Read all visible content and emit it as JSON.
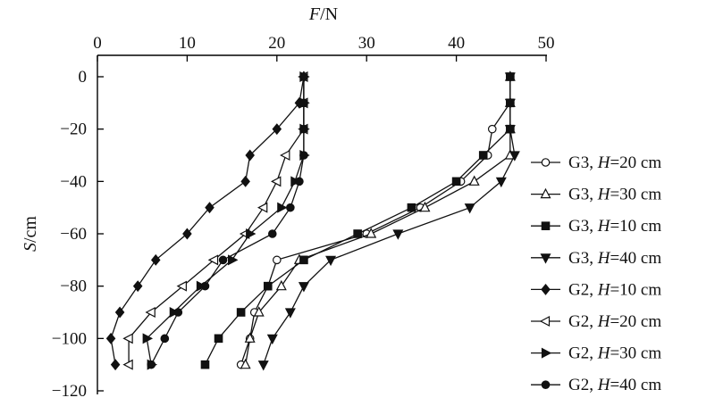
{
  "chart_data": {
    "type": "line",
    "xlabel": {
      "var": "F",
      "unit": "/N"
    },
    "ylabel": {
      "var": "S",
      "unit": "/cm"
    },
    "xlim": [
      0,
      50
    ],
    "ylim": [
      -120,
      0
    ],
    "xticks": [
      0,
      10,
      20,
      30,
      40,
      50
    ],
    "yticks": [
      0,
      -20,
      -40,
      -60,
      -80,
      -100,
      -120
    ],
    "x_axis_position": "top",
    "grid": false,
    "legend_position": "right",
    "series": [
      {
        "name": "G3, H=20 cm",
        "legend": {
          "prefix": "G3, ",
          "var": "H",
          "suffix": "=20 cm"
        },
        "marker": "circle-open",
        "points": [
          [
            46,
            0
          ],
          [
            46,
            -10
          ],
          [
            44,
            -20
          ],
          [
            43.5,
            -30
          ],
          [
            40.5,
            -40
          ],
          [
            36,
            -50
          ],
          [
            30,
            -60
          ],
          [
            20,
            -70
          ],
          [
            19,
            -80
          ],
          [
            17.5,
            -90
          ],
          [
            17,
            -100
          ],
          [
            16,
            -110
          ]
        ]
      },
      {
        "name": "G3, H=30 cm",
        "legend": {
          "prefix": "G3, ",
          "var": "H",
          "suffix": "=30 cm"
        },
        "marker": "triangle-up-open",
        "points": [
          [
            46,
            0
          ],
          [
            46,
            -10
          ],
          [
            46,
            -20
          ],
          [
            46,
            -30
          ],
          [
            42,
            -40
          ],
          [
            36.5,
            -50
          ],
          [
            30.5,
            -60
          ],
          [
            22.5,
            -70
          ],
          [
            20.5,
            -80
          ],
          [
            18,
            -90
          ],
          [
            17,
            -100
          ],
          [
            16.5,
            -110
          ]
        ]
      },
      {
        "name": "G3, H=10 cm",
        "legend": {
          "prefix": "G3, ",
          "var": "H",
          "suffix": "=10 cm"
        },
        "marker": "square",
        "points": [
          [
            46,
            0
          ],
          [
            46,
            -10
          ],
          [
            46,
            -20
          ],
          [
            43,
            -30
          ],
          [
            40,
            -40
          ],
          [
            35,
            -50
          ],
          [
            29,
            -60
          ],
          [
            23,
            -70
          ],
          [
            19,
            -80
          ],
          [
            16,
            -90
          ],
          [
            13.5,
            -100
          ],
          [
            12,
            -110
          ]
        ]
      },
      {
        "name": "G3, H=40 cm",
        "legend": {
          "prefix": "G3, ",
          "var": "H",
          "suffix": "=40 cm"
        },
        "marker": "triangle-down",
        "points": [
          [
            46,
            0
          ],
          [
            46,
            -10
          ],
          [
            46,
            -20
          ],
          [
            46.5,
            -30
          ],
          [
            45,
            -40
          ],
          [
            41.5,
            -50
          ],
          [
            33.5,
            -60
          ],
          [
            26,
            -70
          ],
          [
            23,
            -80
          ],
          [
            21.5,
            -90
          ],
          [
            19.5,
            -100
          ],
          [
            18.5,
            -110
          ]
        ]
      },
      {
        "name": "G2, H=10 cm",
        "legend": {
          "prefix": "G2, ",
          "var": "H",
          "suffix": "=10 cm"
        },
        "marker": "diamond",
        "points": [
          [
            23,
            0
          ],
          [
            22.5,
            -10
          ],
          [
            20,
            -20
          ],
          [
            17,
            -30
          ],
          [
            16.5,
            -40
          ],
          [
            12.5,
            -50
          ],
          [
            10,
            -60
          ],
          [
            6.5,
            -70
          ],
          [
            4.5,
            -80
          ],
          [
            2.5,
            -90
          ],
          [
            1.5,
            -100
          ],
          [
            2,
            -110
          ]
        ]
      },
      {
        "name": "G2, H=20 cm",
        "legend": {
          "prefix": "G2, ",
          "var": "H",
          "suffix": "=20 cm"
        },
        "marker": "triangle-left-open",
        "points": [
          [
            23,
            0
          ],
          [
            23,
            -10
          ],
          [
            23,
            -20
          ],
          [
            21,
            -30
          ],
          [
            20,
            -40
          ],
          [
            18.5,
            -50
          ],
          [
            16.5,
            -60
          ],
          [
            13,
            -70
          ],
          [
            9.5,
            -80
          ],
          [
            6,
            -90
          ],
          [
            3.5,
            -100
          ],
          [
            3.5,
            -110
          ]
        ]
      },
      {
        "name": "G2, H=30 cm",
        "legend": {
          "prefix": "G2, ",
          "var": "H",
          "suffix": "=30 cm"
        },
        "marker": "triangle-right",
        "points": [
          [
            23,
            0
          ],
          [
            23,
            -10
          ],
          [
            23,
            -20
          ],
          [
            23,
            -30
          ],
          [
            22,
            -40
          ],
          [
            20.5,
            -50
          ],
          [
            17,
            -60
          ],
          [
            15,
            -70
          ],
          [
            11.5,
            -80
          ],
          [
            8.5,
            -90
          ],
          [
            5.5,
            -100
          ],
          [
            6,
            -110
          ]
        ]
      },
      {
        "name": "G2, H=40 cm",
        "legend": {
          "prefix": "G2, ",
          "var": "H",
          "suffix": "=40 cm"
        },
        "marker": "circle",
        "points": [
          [
            23,
            0
          ],
          [
            23,
            -10
          ],
          [
            23,
            -20
          ],
          [
            23,
            -30
          ],
          [
            22.5,
            -40
          ],
          [
            21.5,
            -50
          ],
          [
            19.5,
            -60
          ],
          [
            14,
            -70
          ],
          [
            12,
            -80
          ],
          [
            9,
            -90
          ],
          [
            7.5,
            -100
          ],
          [
            6,
            -110
          ]
        ]
      }
    ]
  }
}
